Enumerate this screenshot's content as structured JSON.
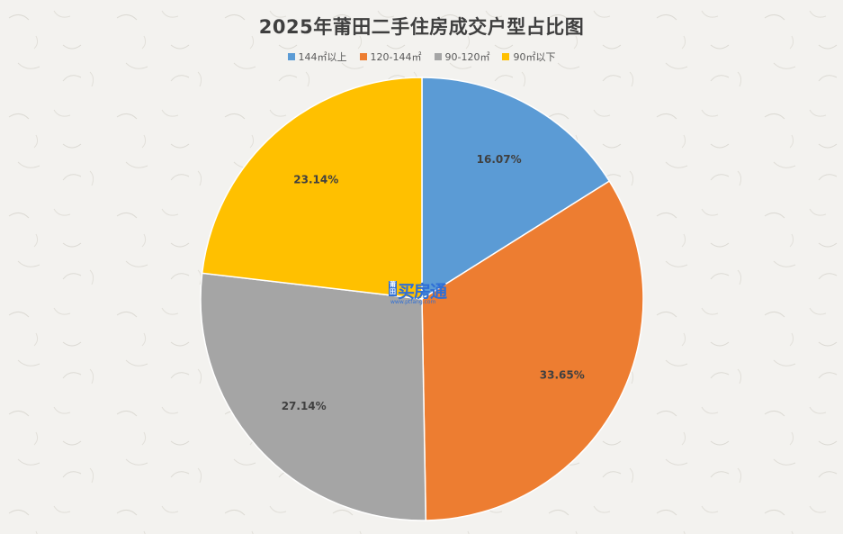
{
  "chart_data": {
    "type": "pie",
    "title": "2025年莆田二手住房成交户型占比图",
    "legend_position": "top",
    "categories": [
      "144㎡以上",
      "120-144㎡",
      "90-120㎡",
      "90㎡以下"
    ],
    "values": [
      16.07,
      33.65,
      27.14,
      23.14
    ],
    "labels": [
      "16.07%",
      "33.65%",
      "27.14%",
      "23.14%"
    ],
    "colors": [
      "#5b9bd5",
      "#ed7d31",
      "#a5a5a5",
      "#ffc000"
    ]
  },
  "watermark": {
    "side": "莆田",
    "main": "买房通",
    "url": "www.ptfang.com"
  }
}
